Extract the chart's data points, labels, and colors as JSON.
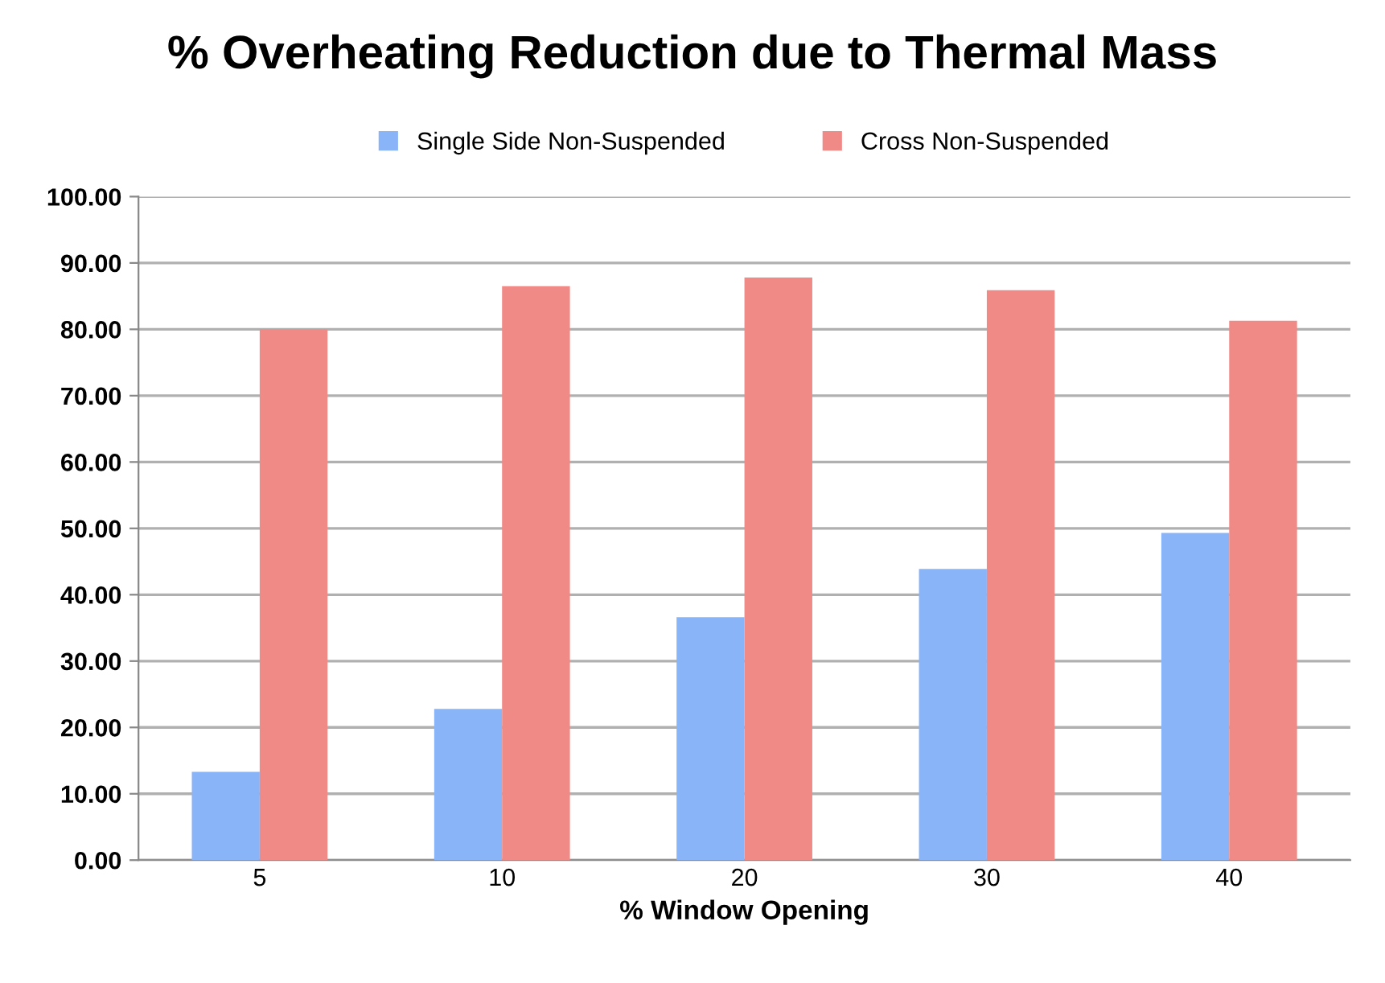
{
  "chart_data": {
    "type": "bar",
    "title": "% Overheating Reduction due to Thermal Mass",
    "xlabel": "% Window Opening",
    "categories": [
      "5",
      "10",
      "20",
      "30",
      "40"
    ],
    "series": [
      {
        "name": "Single Side Non-Suspended",
        "color": "#8ab4f8",
        "values": [
          13.3,
          22.8,
          36.6,
          43.9,
          49.3
        ]
      },
      {
        "name": "Cross Non-Suspended",
        "color": "#f08a86",
        "values": [
          80.0,
          86.5,
          87.8,
          85.9,
          81.3
        ]
      }
    ],
    "ylim": [
      0,
      100
    ],
    "yticks": [
      {
        "value": 0,
        "label": "0.00"
      },
      {
        "value": 10,
        "label": "10.00"
      },
      {
        "value": 20,
        "label": "20.00"
      },
      {
        "value": 30,
        "label": "30.00"
      },
      {
        "value": 40,
        "label": "40.00"
      },
      {
        "value": 50,
        "label": "50.00"
      },
      {
        "value": 60,
        "label": "60.00"
      },
      {
        "value": 70,
        "label": "70.00"
      },
      {
        "value": 80,
        "label": "80.00"
      },
      {
        "value": 90,
        "label": "90.00"
      },
      {
        "value": 100,
        "label": "100.00"
      }
    ],
    "grid": "y",
    "legend": "top"
  }
}
